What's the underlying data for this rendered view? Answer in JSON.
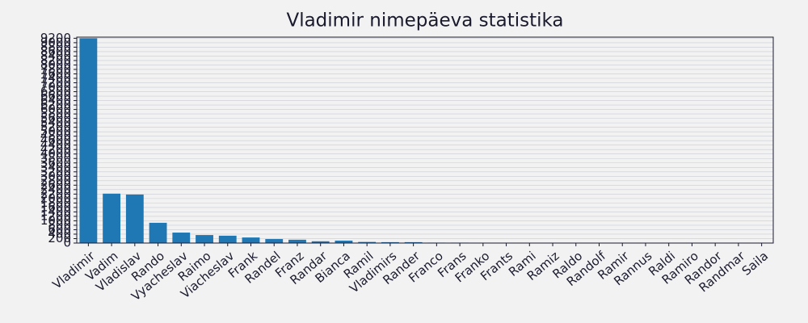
{
  "chart_data": {
    "type": "bar",
    "title": "Vladimir nimepäeva statistika",
    "categories": [
      "Vladimir",
      "Vadim",
      "Vladislav",
      "Rando",
      "Vyacheslav",
      "Raimo",
      "Viacheslav",
      "Frank",
      "Randel",
      "Franz",
      "Randar",
      "Bianca",
      "Ramil",
      "Vladimirs",
      "Rander",
      "Franco",
      "Frans",
      "Franko",
      "Frants",
      "Rami",
      "Ramiz",
      "Raldo",
      "Randolf",
      "Ramir",
      "Rannus",
      "Raldi",
      "Ramiro",
      "Randor",
      "Randmar",
      "Saila"
    ],
    "values": [
      9200,
      2220,
      2180,
      910,
      470,
      360,
      330,
      250,
      180,
      150,
      80,
      110,
      50,
      40,
      40,
      20,
      20,
      15,
      15,
      12,
      5,
      5,
      4,
      4,
      3,
      3,
      3,
      3,
      2,
      2
    ],
    "color": "#1f77b4",
    "ylim": [
      0,
      9250
    ],
    "yticks": [
      0,
      200,
      400,
      600,
      800,
      1000,
      1200,
      1400,
      1600,
      1800,
      2000,
      2200,
      2400,
      2600,
      2800,
      3000,
      3200,
      3400,
      3600,
      3800,
      4000,
      4200,
      4400,
      4600,
      4800,
      5000,
      5200,
      5400,
      5600,
      5800,
      6000,
      6200,
      6400,
      6600,
      6800,
      7000,
      7200,
      7400,
      7600,
      7800,
      8000,
      8200,
      8400,
      8600,
      8800,
      9000,
      9200
    ],
    "grid": true
  }
}
